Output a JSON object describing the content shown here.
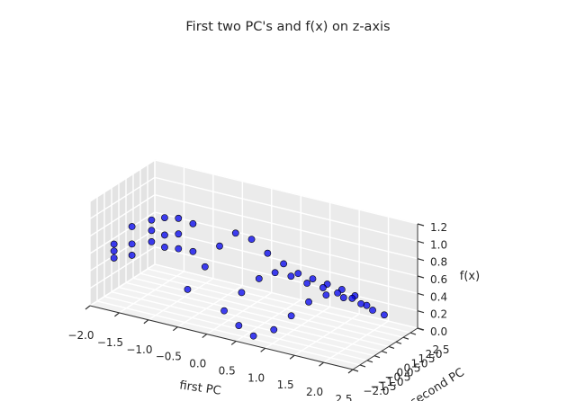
{
  "chart_data": {
    "type": "scatter",
    "title": "First two PC's and f(x) on z-axis",
    "xlabel": "first PC",
    "ylabel": "second PC",
    "zlabel": "f(x)",
    "xlim": [
      -2.0,
      2.5
    ],
    "ylim": [
      -2.0,
      2.5
    ],
    "zlim": [
      0.0,
      1.2
    ],
    "x_ticks": [
      "−2.0",
      "−1.5",
      "−1.0",
      "−0.5",
      "0.0",
      "0.5",
      "1.0",
      "1.5",
      "2.0",
      "2.5"
    ],
    "y_ticks": [
      "−2.0",
      "−1.5",
      "−1.0",
      "−0.5",
      "0.0",
      "0.5",
      "1.0",
      "1.5",
      "2.0",
      "2.5"
    ],
    "z_ticks": [
      "0.0",
      "0.2",
      "0.4",
      "0.6",
      "0.8",
      "1.0",
      "1.2"
    ],
    "grid": true,
    "marker_color": "#0000ee",
    "marker_edge_color": "#000000",
    "points": [
      [
        -1.92,
        -0.66,
        0.42
      ],
      [
        -1.92,
        -0.66,
        0.5
      ],
      [
        -1.92,
        -0.66,
        0.58
      ],
      [
        -1.75,
        -0.1,
        0.42
      ],
      [
        -1.75,
        -0.1,
        0.55
      ],
      [
        -1.75,
        -0.1,
        0.75
      ],
      [
        -1.55,
        0.45,
        0.55
      ],
      [
        -1.55,
        0.45,
        0.68
      ],
      [
        -1.55,
        0.45,
        0.8
      ],
      [
        -1.4,
        0.75,
        0.48
      ],
      [
        -1.4,
        0.75,
        0.62
      ],
      [
        -1.4,
        0.75,
        0.82
      ],
      [
        -1.25,
        1.1,
        0.45
      ],
      [
        -1.25,
        1.1,
        0.62
      ],
      [
        -1.25,
        1.1,
        0.8
      ],
      [
        -1.1,
        1.5,
        0.4
      ],
      [
        -1.1,
        1.5,
        0.72
      ],
      [
        -0.6,
        -0.9,
        0.3
      ],
      [
        -0.4,
        -0.5,
        0.55
      ],
      [
        -0.2,
        -0.3,
        0.8
      ],
      [
        0.0,
        0.0,
        0.95
      ],
      [
        0.2,
        0.3,
        0.88
      ],
      [
        0.4,
        0.6,
        0.72
      ],
      [
        0.6,
        0.9,
        0.6
      ],
      [
        0.8,
        1.1,
        0.5
      ],
      [
        1.0,
        1.3,
        0.45
      ],
      [
        1.2,
        1.5,
        0.4
      ],
      [
        1.4,
        1.7,
        0.35
      ],
      [
        1.6,
        1.8,
        0.3
      ],
      [
        0.3,
        -0.8,
        0.4
      ],
      [
        0.5,
        -0.4,
        0.55
      ],
      [
        0.7,
        -0.1,
        0.62
      ],
      [
        0.9,
        0.2,
        0.58
      ],
      [
        1.1,
        0.5,
        0.5
      ],
      [
        1.3,
        0.8,
        0.45
      ],
      [
        1.5,
        1.0,
        0.4
      ],
      [
        1.7,
        1.2,
        0.35
      ],
      [
        1.9,
        1.4,
        0.28
      ],
      [
        0.1,
        -1.2,
        0.2
      ],
      [
        0.4,
        -1.4,
        0.1
      ],
      [
        0.7,
        -1.6,
        0.05
      ],
      [
        1.0,
        -1.4,
        0.15
      ],
      [
        1.2,
        -1.0,
        0.3
      ],
      [
        1.4,
        -0.6,
        0.45
      ],
      [
        1.6,
        -0.2,
        0.52
      ],
      [
        1.8,
        0.2,
        0.48
      ],
      [
        2.0,
        0.6,
        0.4
      ],
      [
        2.1,
        1.0,
        0.3
      ],
      [
        2.2,
        1.4,
        0.22
      ]
    ]
  }
}
